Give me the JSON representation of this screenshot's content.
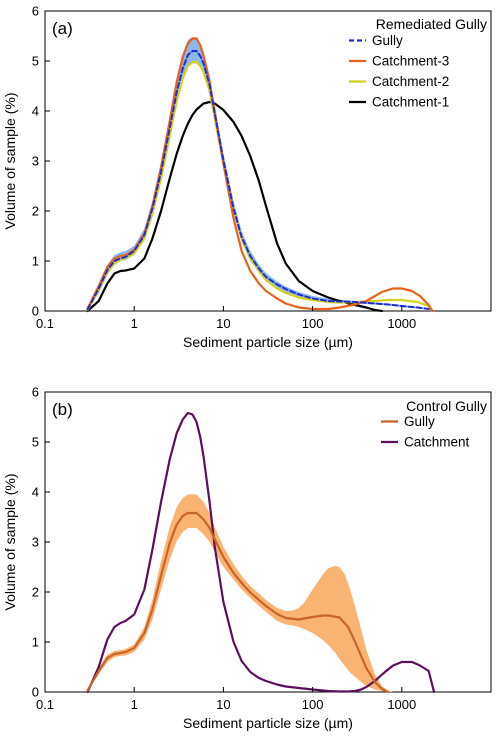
{
  "chart_data": [
    {
      "type": "line",
      "panel_label": "(a)",
      "xlabel": "Sediment particle size (µm)",
      "ylabel": "Volume of sample (%)",
      "x_scale": "log",
      "xlim": [
        0.1,
        10000
      ],
      "ylim": [
        0,
        6
      ],
      "x_ticks": [
        0.1,
        1,
        10,
        100,
        1000
      ],
      "x_tick_labels": [
        "0.1",
        "1",
        "10",
        "100",
        "1000"
      ],
      "y_ticks": [
        0,
        1,
        2,
        3,
        4,
        5,
        6
      ],
      "y_tick_labels": [
        "0",
        "1",
        "2",
        "3",
        "4",
        "5",
        "6"
      ],
      "legend": {
        "title": "Remediated Gully",
        "position": "top-right"
      },
      "band": {
        "color": "#8cb8ec",
        "x": [
          0.3,
          0.4,
          0.5,
          0.6,
          0.7,
          0.8,
          1,
          1.3,
          1.6,
          2,
          2.5,
          3,
          3.5,
          4,
          4.5,
          5,
          5.5,
          6,
          7,
          8,
          10,
          13,
          16,
          20,
          25,
          30,
          40,
          50,
          70,
          100,
          150,
          200,
          300,
          500,
          700,
          1000,
          1500,
          2000
        ],
        "lower": [
          0.01,
          0.35,
          0.72,
          0.92,
          1.0,
          1.02,
          1.12,
          1.42,
          1.92,
          2.62,
          3.45,
          4.15,
          4.62,
          4.88,
          4.95,
          4.95,
          4.88,
          4.74,
          4.35,
          3.78,
          2.9,
          1.95,
          1.38,
          1.0,
          0.77,
          0.62,
          0.47,
          0.37,
          0.27,
          0.21,
          0.17,
          0.16,
          0.15,
          0.13,
          0.11,
          0.08,
          0.05,
          0.03
        ],
        "upper": [
          0.08,
          0.52,
          0.92,
          1.12,
          1.17,
          1.2,
          1.3,
          1.65,
          2.2,
          2.95,
          3.9,
          4.65,
          5.15,
          5.42,
          5.48,
          5.46,
          5.36,
          5.18,
          4.7,
          4.1,
          3.15,
          2.2,
          1.6,
          1.2,
          0.93,
          0.76,
          0.59,
          0.49,
          0.38,
          0.3,
          0.25,
          0.23,
          0.2,
          0.17,
          0.15,
          0.12,
          0.08,
          0.05
        ]
      },
      "series": [
        {
          "name": "Gully",
          "color": "#1f2fcf",
          "dash": "5,3",
          "x": [
            0.3,
            0.4,
            0.5,
            0.6,
            0.7,
            0.8,
            1,
            1.3,
            1.6,
            2,
            2.5,
            3,
            3.5,
            4,
            4.5,
            5,
            5.5,
            6,
            7,
            8,
            10,
            13,
            16,
            20,
            25,
            30,
            40,
            50,
            70,
            100,
            150,
            200,
            300,
            500,
            700,
            1000,
            1500,
            2000
          ],
          "y": [
            0.03,
            0.45,
            0.82,
            1.0,
            1.05,
            1.08,
            1.2,
            1.52,
            2.05,
            2.78,
            3.65,
            4.38,
            4.85,
            5.12,
            5.2,
            5.2,
            5.1,
            4.95,
            4.52,
            3.95,
            3.02,
            2.05,
            1.48,
            1.1,
            0.85,
            0.68,
            0.53,
            0.44,
            0.33,
            0.25,
            0.2,
            0.19,
            0.18,
            0.15,
            0.13,
            0.1,
            0.07,
            0.04
          ]
        },
        {
          "name": "Catchment-3",
          "color": "#e8621c",
          "dash": "",
          "x": [
            0.3,
            0.4,
            0.5,
            0.6,
            0.7,
            0.8,
            1,
            1.3,
            1.6,
            2,
            2.5,
            3,
            3.5,
            4,
            4.5,
            5,
            5.5,
            6,
            7,
            8,
            10,
            13,
            16,
            20,
            25,
            30,
            40,
            50,
            70,
            100,
            150,
            200,
            300,
            400,
            500,
            600,
            700,
            800,
            1000,
            1300,
            1600,
            2000,
            2200
          ],
          "y": [
            0.05,
            0.5,
            0.88,
            1.05,
            1.1,
            1.12,
            1.22,
            1.55,
            2.1,
            2.88,
            3.8,
            4.58,
            5.08,
            5.35,
            5.45,
            5.45,
            5.32,
            5.1,
            4.6,
            3.98,
            2.95,
            1.85,
            1.2,
            0.8,
            0.55,
            0.4,
            0.25,
            0.15,
            0.07,
            0.04,
            0.04,
            0.07,
            0.13,
            0.2,
            0.3,
            0.38,
            0.42,
            0.45,
            0.45,
            0.4,
            0.3,
            0.12,
            0.0
          ]
        },
        {
          "name": "Catchment-2",
          "color": "#d4d020",
          "dash": "",
          "x": [
            0.3,
            0.4,
            0.5,
            0.6,
            0.7,
            0.8,
            1,
            1.3,
            1.6,
            2,
            2.5,
            3,
            3.5,
            4,
            4.5,
            5,
            5.5,
            6,
            7,
            8,
            10,
            13,
            16,
            20,
            25,
            30,
            40,
            50,
            70,
            100,
            150,
            200,
            300,
            500,
            700,
            1000,
            1500,
            2000,
            2200
          ],
          "y": [
            0.02,
            0.42,
            0.78,
            0.95,
            1.02,
            1.06,
            1.15,
            1.45,
            1.95,
            2.65,
            3.5,
            4.2,
            4.65,
            4.9,
            4.98,
            4.98,
            4.9,
            4.78,
            4.4,
            3.85,
            2.95,
            2.05,
            1.45,
            1.05,
            0.8,
            0.62,
            0.45,
            0.36,
            0.27,
            0.22,
            0.18,
            0.17,
            0.18,
            0.2,
            0.22,
            0.22,
            0.18,
            0.1,
            0.0
          ]
        },
        {
          "name": "Catchment-1",
          "color": "#000000",
          "dash": "",
          "x": [
            0.3,
            0.4,
            0.5,
            0.6,
            0.7,
            0.8,
            1,
            1.3,
            1.6,
            2,
            2.5,
            3,
            3.5,
            4,
            4.5,
            5,
            6,
            7,
            8,
            10,
            13,
            16,
            20,
            25,
            30,
            40,
            50,
            70,
            100,
            150,
            200,
            300,
            400,
            500,
            600
          ],
          "y": [
            0.0,
            0.2,
            0.55,
            0.75,
            0.8,
            0.81,
            0.85,
            1.05,
            1.45,
            2.0,
            2.65,
            3.15,
            3.5,
            3.75,
            3.92,
            4.03,
            4.15,
            4.18,
            4.15,
            4.02,
            3.78,
            3.5,
            3.1,
            2.6,
            2.1,
            1.35,
            0.95,
            0.6,
            0.4,
            0.27,
            0.2,
            0.12,
            0.07,
            0.02,
            0.0
          ]
        }
      ]
    },
    {
      "type": "line",
      "panel_label": "(b)",
      "xlabel": "Sediment particle size (µm)",
      "ylabel": "Volume of sample (%)",
      "x_scale": "log",
      "xlim": [
        0.1,
        10000
      ],
      "ylim": [
        0,
        6
      ],
      "x_ticks": [
        0.1,
        1,
        10,
        100,
        1000
      ],
      "x_tick_labels": [
        "0.1",
        "1",
        "10",
        "100",
        "1000"
      ],
      "y_ticks": [
        0,
        1,
        2,
        3,
        4,
        5,
        6
      ],
      "y_tick_labels": [
        "0",
        "1",
        "2",
        "3",
        "4",
        "5",
        "6"
      ],
      "legend": {
        "title": "Control Gully",
        "position": "top-right"
      },
      "band": {
        "color": "#f9b473",
        "x": [
          0.3,
          0.4,
          0.5,
          0.6,
          0.7,
          0.8,
          1,
          1.3,
          1.6,
          2,
          2.5,
          3,
          3.5,
          4,
          5,
          6,
          7,
          8,
          10,
          13,
          16,
          20,
          25,
          30,
          40,
          50,
          60,
          70,
          80,
          100,
          130,
          150,
          180,
          200,
          230,
          260,
          300,
          350,
          400,
          500,
          600,
          700,
          800
        ],
        "lower": [
          0.02,
          0.35,
          0.6,
          0.7,
          0.72,
          0.73,
          0.8,
          1.05,
          1.45,
          2.05,
          2.65,
          3.02,
          3.2,
          3.28,
          3.28,
          3.15,
          3.0,
          2.8,
          2.5,
          2.25,
          2.05,
          1.88,
          1.72,
          1.6,
          1.42,
          1.35,
          1.33,
          1.3,
          1.26,
          1.18,
          1.04,
          0.94,
          0.78,
          0.66,
          0.52,
          0.4,
          0.3,
          0.2,
          0.12,
          0.05,
          0.02,
          0.0,
          0.0
        ],
        "upper": [
          0.05,
          0.48,
          0.75,
          0.82,
          0.84,
          0.86,
          0.95,
          1.3,
          1.85,
          2.62,
          3.3,
          3.7,
          3.88,
          3.95,
          3.95,
          3.8,
          3.58,
          3.3,
          2.9,
          2.55,
          2.32,
          2.12,
          1.97,
          1.84,
          1.68,
          1.62,
          1.63,
          1.68,
          1.78,
          2.05,
          2.35,
          2.48,
          2.52,
          2.5,
          2.35,
          2.08,
          1.7,
          1.25,
          0.85,
          0.35,
          0.12,
          0.03,
          0.0
        ]
      },
      "series": [
        {
          "name": "Gully",
          "color": "#c8642a",
          "dash": "",
          "x": [
            0.3,
            0.4,
            0.5,
            0.6,
            0.7,
            0.8,
            1,
            1.3,
            1.6,
            2,
            2.5,
            3,
            3.5,
            4,
            5,
            6,
            7,
            8,
            10,
            13,
            16,
            20,
            25,
            30,
            40,
            50,
            70,
            100,
            130,
            150,
            200,
            250,
            300,
            350,
            400,
            500,
            600,
            700
          ],
          "y": [
            0.03,
            0.42,
            0.68,
            0.76,
            0.78,
            0.8,
            0.88,
            1.18,
            1.65,
            2.33,
            2.98,
            3.35,
            3.52,
            3.58,
            3.58,
            3.45,
            3.28,
            3.05,
            2.7,
            2.38,
            2.18,
            1.99,
            1.84,
            1.72,
            1.56,
            1.48,
            1.45,
            1.5,
            1.53,
            1.53,
            1.49,
            1.3,
            1.0,
            0.72,
            0.48,
            0.2,
            0.06,
            0.0
          ]
        },
        {
          "name": "Catchment",
          "color": "#5c0f5c",
          "dash": "",
          "x": [
            0.3,
            0.4,
            0.5,
            0.6,
            0.7,
            0.8,
            1,
            1.3,
            1.6,
            2,
            2.5,
            3,
            3.5,
            4,
            4.5,
            5,
            5.5,
            6,
            7,
            8,
            10,
            13,
            16,
            20,
            25,
            30,
            40,
            50,
            70,
            100,
            130,
            150,
            200,
            250,
            300,
            350,
            400,
            500,
            600,
            700,
            800,
            1000,
            1300,
            1600,
            2000,
            2300
          ],
          "y": [
            0.0,
            0.5,
            1.05,
            1.3,
            1.38,
            1.42,
            1.55,
            2.05,
            2.85,
            3.8,
            4.65,
            5.18,
            5.45,
            5.58,
            5.55,
            5.4,
            5.1,
            4.7,
            3.8,
            2.9,
            1.8,
            1.0,
            0.62,
            0.4,
            0.28,
            0.22,
            0.15,
            0.11,
            0.08,
            0.05,
            0.03,
            0.02,
            0.01,
            0.01,
            0.02,
            0.05,
            0.1,
            0.22,
            0.35,
            0.45,
            0.53,
            0.6,
            0.6,
            0.53,
            0.42,
            0.0
          ]
        }
      ]
    }
  ]
}
